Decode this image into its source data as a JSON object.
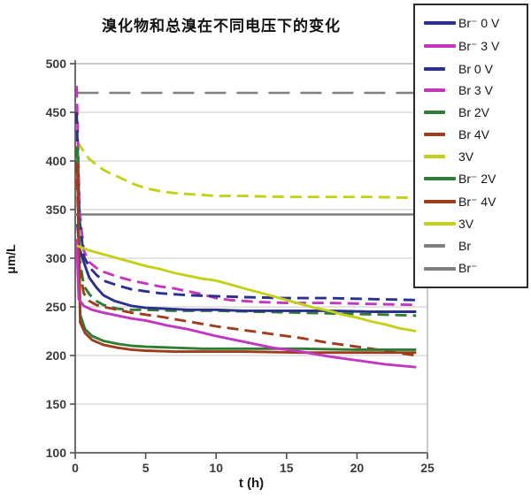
{
  "title": "溴化物和总溴在不同电压下的变化",
  "chart_data": {
    "type": "line",
    "title": "溴化物和总溴在不同电压下的变化",
    "xlabel": "t (h)",
    "ylabel": "μm/L",
    "xlim": [
      0,
      25
    ],
    "ylim": [
      100,
      500
    ],
    "xticks": [
      0,
      5,
      10,
      15,
      20,
      25
    ],
    "yticks": [
      100,
      150,
      200,
      250,
      300,
      350,
      400,
      450,
      500
    ],
    "grid": "horizontal",
    "legend_position": "top-right",
    "z_order": [
      10,
      11,
      6,
      3,
      2,
      4,
      5,
      0,
      7,
      8,
      1,
      9
    ],
    "colors": {
      "navy": "#2b2f8e",
      "magenta": "#c336c1",
      "green": "#2f7d33",
      "dark_red": "#a03c1e",
      "yellow_green": "#c3d018",
      "gray": "#7f7f7f"
    },
    "series": [
      {
        "name": "Br⁻ 0 V",
        "color": "#2b2f8e",
        "dash": "solid",
        "points": [
          [
            0.15,
            335
          ],
          [
            0.3,
            310
          ],
          [
            0.6,
            296
          ],
          [
            1,
            280
          ],
          [
            1.5,
            270
          ],
          [
            2,
            262
          ],
          [
            2.8,
            256
          ],
          [
            4,
            251
          ],
          [
            5,
            249
          ],
          [
            6.5,
            248
          ],
          [
            8,
            247
          ],
          [
            10,
            247
          ],
          [
            12,
            246
          ],
          [
            15,
            246
          ],
          [
            18,
            246
          ],
          [
            21,
            245
          ],
          [
            24.2,
            245
          ]
        ]
      },
      {
        "name": "Br⁻ 3 V",
        "color": "#c336c1",
        "dash": "solid",
        "points": [
          [
            0.1,
            320
          ],
          [
            0.25,
            258
          ],
          [
            0.6,
            251
          ],
          [
            1.2,
            247
          ],
          [
            2,
            244
          ],
          [
            3,
            241
          ],
          [
            4,
            238
          ],
          [
            5,
            236
          ],
          [
            6.5,
            231
          ],
          [
            8,
            227
          ],
          [
            10,
            220
          ],
          [
            12,
            214
          ],
          [
            14,
            208
          ],
          [
            16,
            204
          ],
          [
            18,
            199
          ],
          [
            20,
            195
          ],
          [
            22,
            191
          ],
          [
            24.2,
            188
          ]
        ]
      },
      {
        "name": "Br 0 V",
        "color": "#2b2f8e",
        "dash": "dashed",
        "points": [
          [
            0.1,
            450
          ],
          [
            0.3,
            340
          ],
          [
            0.6,
            302
          ],
          [
            1,
            291
          ],
          [
            1.5,
            283
          ],
          [
            2,
            277
          ],
          [
            3,
            272
          ],
          [
            4,
            268
          ],
          [
            5,
            266
          ],
          [
            6,
            264
          ],
          [
            8,
            262
          ],
          [
            10,
            261
          ],
          [
            12,
            260
          ],
          [
            15,
            259
          ],
          [
            18,
            259
          ],
          [
            21,
            258
          ],
          [
            24.2,
            257
          ]
        ]
      },
      {
        "name": "Br 3 V",
        "color": "#c336c1",
        "dash": "dashed",
        "points": [
          [
            0.1,
            477
          ],
          [
            0.3,
            350
          ],
          [
            0.6,
            308
          ],
          [
            1,
            296
          ],
          [
            1.5,
            290
          ],
          [
            2,
            286
          ],
          [
            3,
            281
          ],
          [
            4,
            277
          ],
          [
            5,
            274
          ],
          [
            6,
            271
          ],
          [
            7,
            269
          ],
          [
            8,
            266
          ],
          [
            9,
            263
          ],
          [
            10,
            259
          ],
          [
            11,
            257
          ],
          [
            13,
            255
          ],
          [
            15,
            254
          ],
          [
            18,
            254
          ],
          [
            21,
            253
          ],
          [
            24.2,
            252
          ]
        ]
      },
      {
        "name": "Br 2V",
        "color": "#2f7d33",
        "dash": "dashed",
        "points": [
          [
            0.1,
            415
          ],
          [
            0.3,
            300
          ],
          [
            0.6,
            272
          ],
          [
            1,
            263
          ],
          [
            1.5,
            256
          ],
          [
            2,
            252
          ],
          [
            3,
            248
          ],
          [
            4,
            247
          ],
          [
            5,
            247
          ],
          [
            7,
            246
          ],
          [
            10,
            246
          ],
          [
            13,
            245
          ],
          [
            16,
            244
          ],
          [
            19,
            243
          ],
          [
            22,
            242
          ],
          [
            24.2,
            241
          ]
        ]
      },
      {
        "name": "Br 4V",
        "color": "#a03c1e",
        "dash": "dashed",
        "points": [
          [
            0.1,
            400
          ],
          [
            0.3,
            290
          ],
          [
            0.6,
            264
          ],
          [
            1,
            256
          ],
          [
            1.5,
            252
          ],
          [
            2,
            250
          ],
          [
            3,
            247
          ],
          [
            4,
            244
          ],
          [
            5,
            242
          ],
          [
            6,
            240
          ],
          [
            8,
            235
          ],
          [
            10,
            230
          ],
          [
            12,
            226
          ],
          [
            14,
            222
          ],
          [
            16,
            218
          ],
          [
            18,
            213
          ],
          [
            20,
            209
          ],
          [
            21.5,
            206
          ],
          [
            22.8,
            203
          ],
          [
            24.2,
            200
          ]
        ]
      },
      {
        "name": "3V",
        "color": "#c3d018",
        "dash": "dashed",
        "points": [
          [
            0.15,
            420
          ],
          [
            0.5,
            412
          ],
          [
            1,
            402
          ],
          [
            1.5,
            396
          ],
          [
            2,
            391
          ],
          [
            2.5,
            387
          ],
          [
            3,
            384
          ],
          [
            4,
            377
          ],
          [
            5,
            372
          ],
          [
            6,
            369
          ],
          [
            7,
            367
          ],
          [
            8,
            366
          ],
          [
            9,
            365
          ],
          [
            10,
            364
          ],
          [
            12,
            364
          ],
          [
            15,
            363
          ],
          [
            18,
            363
          ],
          [
            21,
            363
          ],
          [
            24.2,
            362
          ]
        ]
      },
      {
        "name": "Br⁻ 2V",
        "color": "#2f7d33",
        "dash": "solid",
        "points": [
          [
            0.15,
            413
          ],
          [
            0.35,
            242
          ],
          [
            0.7,
            227
          ],
          [
            1.2,
            220
          ],
          [
            2,
            215
          ],
          [
            3,
            212
          ],
          [
            4,
            210
          ],
          [
            5,
            209
          ],
          [
            7,
            208
          ],
          [
            9,
            207
          ],
          [
            12,
            207
          ],
          [
            16,
            207
          ],
          [
            20,
            206
          ],
          [
            24.2,
            206
          ]
        ]
      },
      {
        "name": "Br⁻ 4V",
        "color": "#a03c1e",
        "dash": "solid",
        "points": [
          [
            0.15,
            398
          ],
          [
            0.35,
            234
          ],
          [
            0.7,
            223
          ],
          [
            1.2,
            216
          ],
          [
            2,
            211
          ],
          [
            3,
            208
          ],
          [
            4,
            206
          ],
          [
            5,
            205
          ],
          [
            7,
            204
          ],
          [
            9,
            204
          ],
          [
            12,
            204
          ],
          [
            16,
            203
          ],
          [
            20,
            203
          ],
          [
            24.2,
            203
          ]
        ]
      },
      {
        "name": "3V",
        "color": "#c3d018",
        "dash": "solid",
        "points": [
          [
            0.1,
            313
          ],
          [
            1,
            308
          ],
          [
            2,
            304
          ],
          [
            3,
            300
          ],
          [
            4,
            296
          ],
          [
            5,
            292
          ],
          [
            6,
            289
          ],
          [
            7,
            285
          ],
          [
            8,
            282
          ],
          [
            9,
            279
          ],
          [
            10,
            277
          ],
          [
            11,
            273
          ],
          [
            12,
            269
          ],
          [
            13,
            265
          ],
          [
            14,
            261
          ],
          [
            15,
            257
          ],
          [
            16,
            253
          ],
          [
            17,
            249
          ],
          [
            18,
            246
          ],
          [
            19,
            242
          ],
          [
            20,
            239
          ],
          [
            21,
            235
          ],
          [
            22,
            232
          ],
          [
            23,
            228
          ],
          [
            24.2,
            225
          ]
        ]
      },
      {
        "name": "Br",
        "color": "#7f7f7f",
        "dash": "dashed",
        "points": [
          [
            0.15,
            470
          ],
          [
            24.3,
            470
          ]
        ]
      },
      {
        "name": "Br⁻",
        "color": "#7f7f7f",
        "dash": "solid",
        "points": [
          [
            0,
            345
          ],
          [
            24.3,
            345
          ]
        ]
      }
    ]
  }
}
